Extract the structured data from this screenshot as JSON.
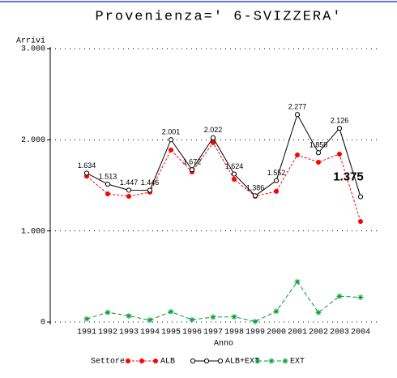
{
  "chart_data": {
    "type": "line",
    "title": "Provenienza=' 6-SVIZZERA'",
    "y_label": "Arrivi",
    "x_label": "Anno",
    "legend_title": "Settore",
    "categories": [
      "1991",
      "1992",
      "1993",
      "1994",
      "1995",
      "1996",
      "1997",
      "1998",
      "1999",
      "2000",
      "2001",
      "2002",
      "2003",
      "2004"
    ],
    "series": [
      {
        "name": "ALB",
        "color": "#ff0000",
        "marker": "dot",
        "values": [
          1600,
          1407,
          1380,
          1425,
          1888,
          1647,
          1968,
          1567,
          1380,
          1434,
          1834,
          1754,
          1843,
          1104
        ]
      },
      {
        "name": "ALB+EXT",
        "color": "#000000",
        "marker": "circle",
        "values": [
          1634,
          1513,
          1447,
          1446,
          2001,
          1672,
          2022,
          1624,
          1386,
          1552,
          2277,
          1858,
          2126,
          1375
        ],
        "value_labels": [
          "1.634",
          "1.513",
          "1.447",
          "1.446",
          "2.001",
          "1.672",
          "2.022",
          "1.624",
          "1.386",
          "1.552",
          "2.277",
          "1.858",
          "2.126",
          "1.375"
        ]
      },
      {
        "name": "EXT",
        "color": "#009933",
        "marker": "star",
        "values": [
          34,
          106,
          67,
          21,
          113,
          25,
          54,
          57,
          6,
          118,
          443,
          104,
          283,
          271
        ]
      }
    ],
    "ylim": [
      0,
      3000
    ],
    "yticks": [
      0,
      {
        "value": 1000,
        "label": "1.000"
      },
      {
        "value": 2000,
        "label": "2.000"
      },
      {
        "value": 3000,
        "label": "3.000"
      }
    ],
    "grid": true
  }
}
